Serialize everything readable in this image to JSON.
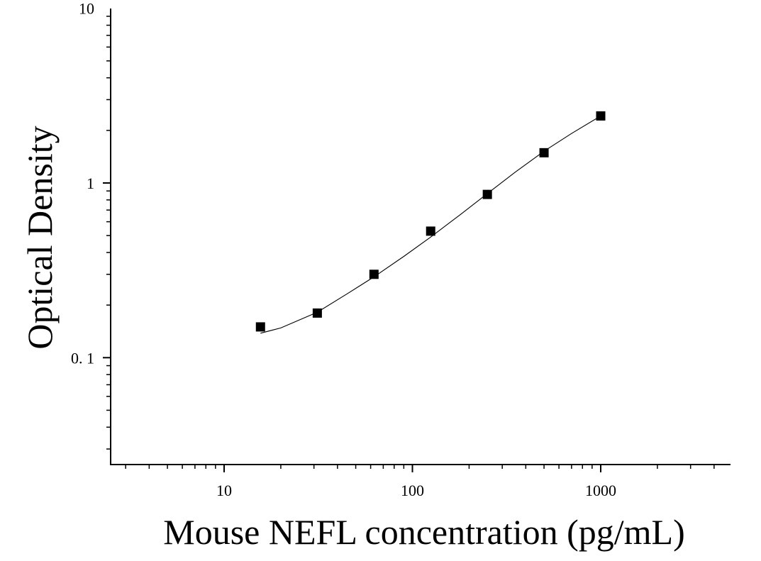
{
  "chart_data": {
    "type": "scatter",
    "title": "",
    "xlabel": "Mouse NEFL concentration (pg/mL)",
    "ylabel": "Optical Density",
    "x_scale": "log",
    "y_scale": "log",
    "xlim": [
      2.5,
      5000
    ],
    "ylim": [
      0.025,
      10
    ],
    "x_ticks": [
      {
        "value": 10,
        "label": "10"
      },
      {
        "value": 100,
        "label": "100"
      },
      {
        "value": 1000,
        "label": "1000"
      }
    ],
    "y_ticks": [
      {
        "value": 0.1,
        "label": "0. 1"
      },
      {
        "value": 1,
        "label": "1"
      },
      {
        "value": 10,
        "label": "10"
      }
    ],
    "grid": false,
    "legend": "none",
    "marker_color": "#000000",
    "fit_color": "#000000",
    "series": [
      {
        "x": [
          15.6,
          31.25,
          62.5,
          125,
          250,
          500,
          1000
        ],
        "y": [
          0.15,
          0.18,
          0.3,
          0.53,
          0.86,
          1.49,
          2.42
        ]
      }
    ],
    "fit_curve": {
      "x": [
        15.6,
        20,
        31.25,
        45,
        62.5,
        90,
        125,
        180,
        250,
        350,
        500,
        700,
        1000
      ],
      "y": [
        0.138,
        0.148,
        0.182,
        0.232,
        0.29,
        0.38,
        0.49,
        0.66,
        0.87,
        1.15,
        1.52,
        1.92,
        2.42
      ]
    }
  }
}
